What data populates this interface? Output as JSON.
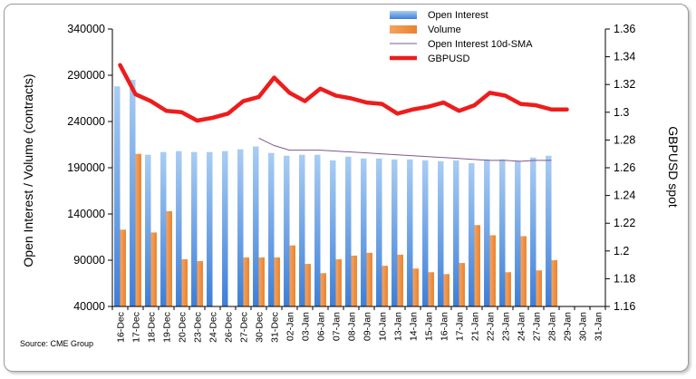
{
  "chart_data": {
    "type": "bar",
    "categories": [
      "16-Dec",
      "17-Dec",
      "18-Dec",
      "19-Dec",
      "20-Dec",
      "23-Dec",
      "24-Dec",
      "26-Dec",
      "27-Dec",
      "30-Dec",
      "31-Dec",
      "02-Jan",
      "03-Jan",
      "06-Jan",
      "07-Jan",
      "08-Jan",
      "09-Jan",
      "10-Jan",
      "13-Jan",
      "14-Jan",
      "15-Jan",
      "16-Jan",
      "17-Jan",
      "21-Jan",
      "22-Jan",
      "23-Jan",
      "24-Jan",
      "27-Jan",
      "28-Jan",
      "29-Jan",
      "30-Jan",
      "31-Jan"
    ],
    "series": [
      {
        "name": "Open Interest",
        "kind": "bar",
        "axis": "left",
        "color": "#5b9bd5",
        "values": [
          278000,
          285000,
          204000,
          207000,
          208000,
          207000,
          207000,
          208000,
          210000,
          213000,
          206000,
          203000,
          204000,
          204000,
          198000,
          202000,
          200000,
          200000,
          199000,
          199000,
          198000,
          197000,
          198000,
          195000,
          199000,
          199000,
          197000,
          201000,
          203000,
          null,
          null,
          null
        ]
      },
      {
        "name": "Volume",
        "kind": "bar",
        "axis": "left",
        "color": "#f79646",
        "values": [
          123000,
          205000,
          120000,
          143000,
          91000,
          89000,
          39000,
          32000,
          93000,
          93000,
          93000,
          106000,
          86000,
          76000,
          91000,
          95000,
          98000,
          84000,
          96000,
          81000,
          77000,
          75000,
          87000,
          128000,
          117000,
          77000,
          116000,
          79000,
          90000,
          null,
          null,
          null
        ]
      },
      {
        "name": "Open Interest 10d-SMA",
        "kind": "line",
        "axis": "left",
        "color": "#7b5a8c",
        "values": [
          null,
          null,
          null,
          null,
          null,
          null,
          null,
          null,
          null,
          222000,
          214000,
          209000,
          209000,
          209000,
          208000,
          207000,
          206000,
          205000,
          204000,
          203000,
          202000,
          201000,
          200000,
          199000,
          198000,
          198000,
          197000,
          198000,
          198000,
          null,
          null,
          null
        ]
      },
      {
        "name": "GBPUSD",
        "kind": "line",
        "axis": "right",
        "color": "#ee1c1c",
        "values": [
          1.334,
          1.313,
          1.308,
          1.301,
          1.3,
          1.294,
          1.296,
          1.299,
          1.308,
          1.311,
          1.325,
          1.314,
          1.308,
          1.317,
          1.312,
          1.31,
          1.307,
          1.306,
          1.299,
          1.302,
          1.304,
          1.307,
          1.301,
          1.305,
          1.314,
          1.312,
          1.306,
          1.305,
          1.302,
          1.302,
          null,
          null
        ]
      }
    ],
    "ylabel": "Open Interest / Volume (contracts)",
    "y2label": "GBPUSD spot",
    "ylim": [
      40000,
      340000
    ],
    "yticks": [
      40000,
      90000,
      140000,
      190000,
      240000,
      290000,
      340000
    ],
    "y2lim": [
      1.16,
      1.36
    ],
    "y2ticks": [
      "1.16",
      "1.18",
      "1.2",
      "1.22",
      "1.24",
      "1.26",
      "1.28",
      "1.3",
      "1.32",
      "1.34",
      "1.36"
    ],
    "grid": false,
    "legend_position": "top-center",
    "source": "Source: CME Group"
  }
}
